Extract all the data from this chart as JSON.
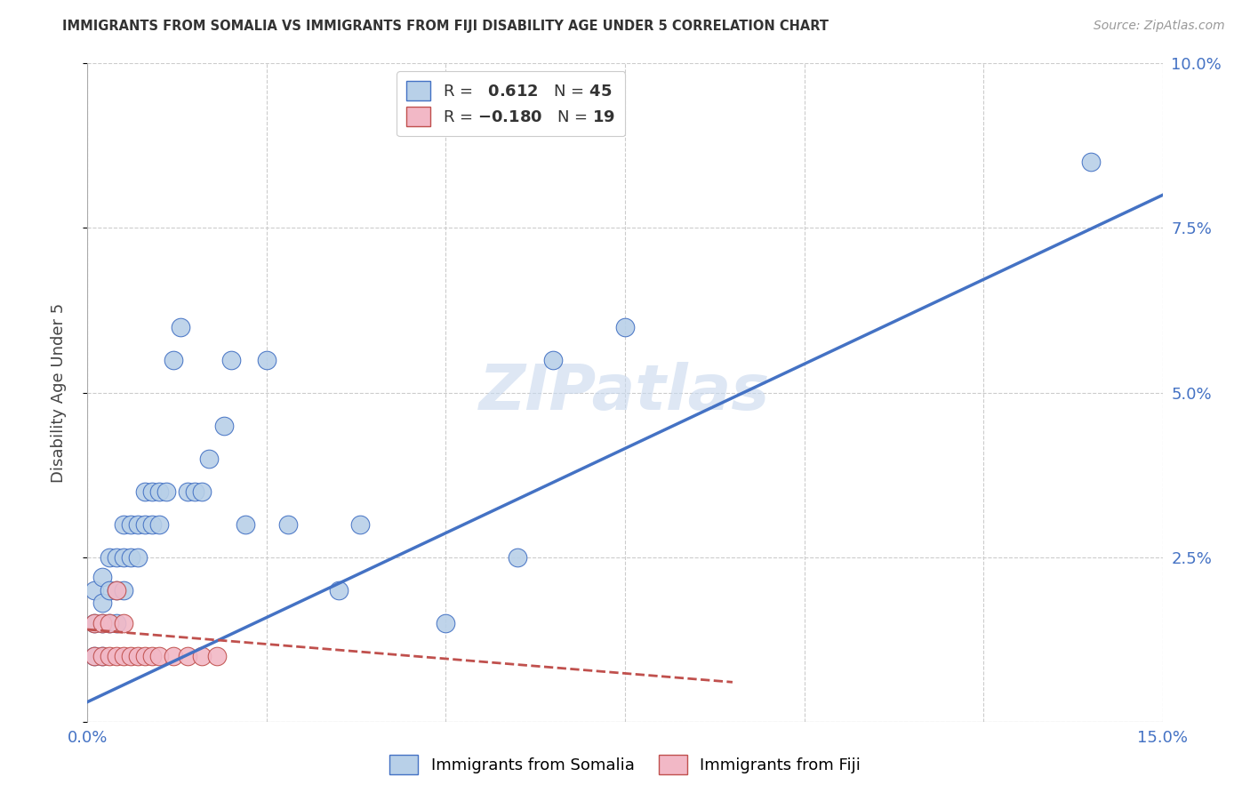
{
  "title": "IMMIGRANTS FROM SOMALIA VS IMMIGRANTS FROM FIJI DISABILITY AGE UNDER 5 CORRELATION CHART",
  "source": "Source: ZipAtlas.com",
  "ylabel": "Disability Age Under 5",
  "xlim": [
    0.0,
    0.15
  ],
  "ylim": [
    0.0,
    0.1
  ],
  "xticks": [
    0.0,
    0.025,
    0.05,
    0.075,
    0.1,
    0.125,
    0.15
  ],
  "yticks": [
    0.0,
    0.025,
    0.05,
    0.075,
    0.1
  ],
  "ytick_labels_right": [
    "",
    "2.5%",
    "5.0%",
    "7.5%",
    "10.0%"
  ],
  "xtick_labels": [
    "0.0%",
    "",
    "",
    "",
    "",
    "",
    "15.0%"
  ],
  "somalia_R": 0.612,
  "somalia_N": 45,
  "fiji_R": -0.18,
  "fiji_N": 19,
  "somalia_color": "#b8d0e8",
  "fiji_color": "#f2b8c6",
  "somalia_line_color": "#4472c4",
  "fiji_line_color": "#c0504d",
  "watermark_text": "ZIPatlas",
  "somalia_line_x": [
    0.0,
    0.15
  ],
  "somalia_line_y": [
    0.003,
    0.08
  ],
  "fiji_line_x": [
    0.0,
    0.09
  ],
  "fiji_line_y": [
    0.014,
    0.006
  ],
  "somalia_points_x": [
    0.001,
    0.001,
    0.001,
    0.002,
    0.002,
    0.002,
    0.002,
    0.003,
    0.003,
    0.003,
    0.004,
    0.004,
    0.004,
    0.005,
    0.005,
    0.005,
    0.006,
    0.006,
    0.007,
    0.007,
    0.008,
    0.008,
    0.009,
    0.009,
    0.01,
    0.01,
    0.011,
    0.012,
    0.013,
    0.014,
    0.015,
    0.016,
    0.017,
    0.019,
    0.02,
    0.022,
    0.025,
    0.028,
    0.035,
    0.038,
    0.05,
    0.06,
    0.065,
    0.075,
    0.14
  ],
  "somalia_points_y": [
    0.01,
    0.015,
    0.02,
    0.01,
    0.015,
    0.018,
    0.022,
    0.015,
    0.02,
    0.025,
    0.015,
    0.02,
    0.025,
    0.02,
    0.025,
    0.03,
    0.025,
    0.03,
    0.025,
    0.03,
    0.03,
    0.035,
    0.03,
    0.035,
    0.03,
    0.035,
    0.035,
    0.055,
    0.06,
    0.035,
    0.035,
    0.035,
    0.04,
    0.045,
    0.055,
    0.03,
    0.055,
    0.03,
    0.02,
    0.03,
    0.015,
    0.025,
    0.055,
    0.06,
    0.085
  ],
  "fiji_points_x": [
    0.001,
    0.001,
    0.002,
    0.002,
    0.003,
    0.003,
    0.004,
    0.004,
    0.005,
    0.005,
    0.006,
    0.007,
    0.008,
    0.009,
    0.01,
    0.012,
    0.014,
    0.016,
    0.018
  ],
  "fiji_points_y": [
    0.01,
    0.015,
    0.01,
    0.015,
    0.01,
    0.015,
    0.01,
    0.02,
    0.01,
    0.015,
    0.01,
    0.01,
    0.01,
    0.01,
    0.01,
    0.01,
    0.01,
    0.01,
    0.01
  ]
}
